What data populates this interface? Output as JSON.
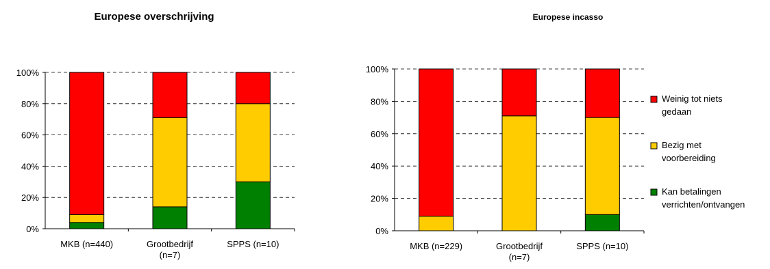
{
  "colors": {
    "red": "#ff0000",
    "yellow": "#ffcc00",
    "green": "#008000",
    "grid": "#000000"
  },
  "legend": [
    {
      "name": "Weinig tot niets gedaan",
      "lines": [
        "Weinig tot niets",
        "gedaan"
      ],
      "color": "#ff0000"
    },
    {
      "name": "Bezig met voorbereiding",
      "lines": [
        "Bezig met",
        "voorbereiding"
      ],
      "color": "#ffcc00"
    },
    {
      "name": "Kan betalingen verrichten/ontvangen",
      "lines": [
        "Kan betalingen",
        "verrichten/ontvangen"
      ],
      "color": "#008000"
    }
  ],
  "chart_data": [
    {
      "type": "bar",
      "stacked": true,
      "percent": true,
      "title": "Europese overschrijving",
      "categories": [
        {
          "name": "MKB (n=440)",
          "lines": [
            "MKB (n=440)"
          ]
        },
        {
          "name": "Grootbedrijf (n=7)",
          "lines": [
            "Grootbedrijf",
            "(n=7)"
          ]
        },
        {
          "name": "SPPS (n=10)",
          "lines": [
            "SPPS (n=10)"
          ]
        }
      ],
      "series": [
        {
          "name": "Kan betalingen verrichten/ontvangen",
          "values": [
            4,
            14,
            30
          ]
        },
        {
          "name": "Bezig met voorbereiding",
          "values": [
            5,
            57,
            50
          ]
        },
        {
          "name": "Weinig tot niets gedaan",
          "values": [
            91,
            29,
            20
          ]
        }
      ],
      "ylim": [
        0,
        100
      ],
      "yticks": [
        "0%",
        "20%",
        "40%",
        "60%",
        "80%",
        "100%"
      ],
      "grid": true
    },
    {
      "type": "bar",
      "stacked": true,
      "percent": true,
      "title": "Europese incasso",
      "categories": [
        {
          "name": "MKB (n=229)",
          "lines": [
            "MKB (n=229)"
          ]
        },
        {
          "name": "Grootbedrijf (n=7)",
          "lines": [
            "Grootbedrijf",
            "(n=7)"
          ]
        },
        {
          "name": "SPPS (n=10)",
          "lines": [
            "SPPS (n=10)"
          ]
        }
      ],
      "series": [
        {
          "name": "Kan betalingen verrichten/ontvangen",
          "values": [
            0,
            0,
            10
          ]
        },
        {
          "name": "Bezig met voorbereiding",
          "values": [
            9,
            71,
            60
          ]
        },
        {
          "name": "Weinig tot niets gedaan",
          "values": [
            91,
            29,
            30
          ]
        }
      ],
      "ylim": [
        0,
        100
      ],
      "yticks": [
        "0%",
        "20%",
        "40%",
        "60%",
        "80%",
        "100%"
      ],
      "grid": true,
      "legend_position": "right"
    }
  ]
}
